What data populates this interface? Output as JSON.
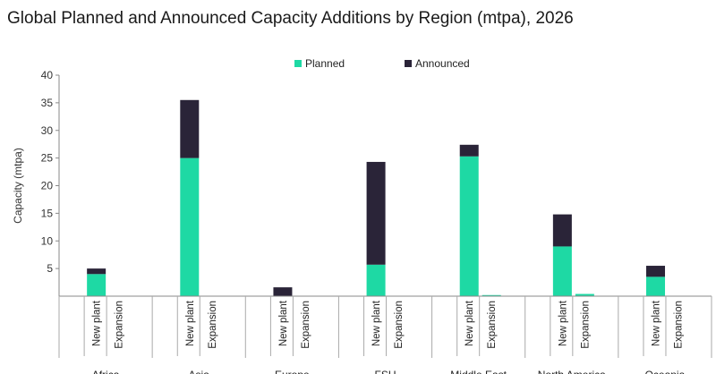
{
  "title": "Global Planned and Announced Capacity Additions by Region (mtpa), 2026",
  "chart_data": {
    "type": "bar",
    "stacked": true,
    "ylabel": "Capacity (mtpa)",
    "ylim": [
      0,
      40
    ],
    "yticks": [
      5,
      10,
      15,
      20,
      25,
      30,
      35,
      40
    ],
    "legend_position": "top",
    "sub_categories": [
      "New plant",
      "Expansion"
    ],
    "regions": [
      "Africa",
      "Asia",
      "Europe",
      "FSU",
      "Middle East",
      "North America",
      "Oceania"
    ],
    "series": [
      {
        "name": "Planned",
        "color": "#1ED9A4",
        "values": [
          [
            4.0,
            0
          ],
          [
            25.0,
            0
          ],
          [
            0,
            0
          ],
          [
            5.7,
            0
          ],
          [
            25.3,
            0.2
          ],
          [
            9.0,
            0.4
          ],
          [
            3.5,
            0
          ]
        ]
      },
      {
        "name": "Announced",
        "color": "#2A2438",
        "values": [
          [
            1.0,
            0
          ],
          [
            10.5,
            0
          ],
          [
            1.6,
            0
          ],
          [
            18.6,
            0
          ],
          [
            2.1,
            0
          ],
          [
            5.8,
            0
          ],
          [
            2.0,
            0
          ]
        ]
      }
    ]
  }
}
